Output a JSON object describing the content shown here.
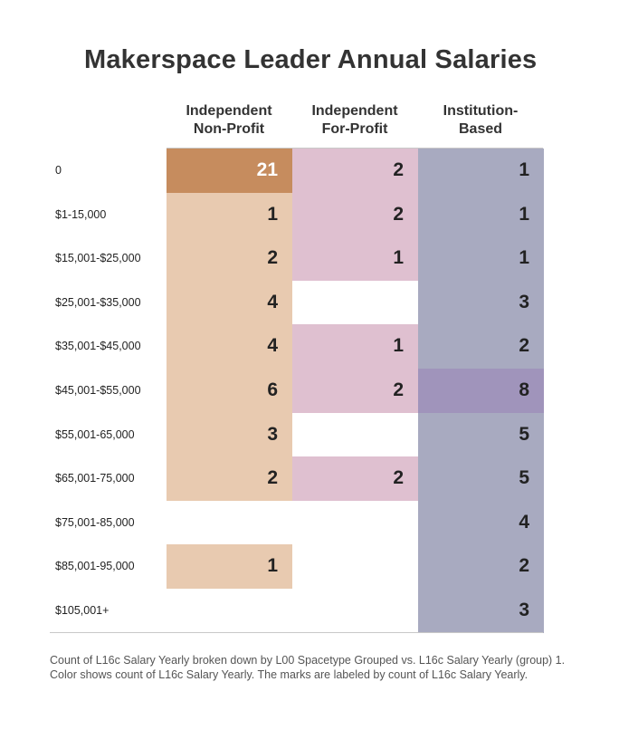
{
  "title": "Makerspace Leader Annual Salaries",
  "chart_data": {
    "type": "table",
    "title": "Makerspace Leader Annual Salaries",
    "columns": [
      {
        "lines": [
          "Independent",
          "Non-Profit"
        ]
      },
      {
        "lines": [
          "Independent",
          "For-Profit"
        ]
      },
      {
        "lines": [
          "Institution-",
          "Based"
        ]
      }
    ],
    "rows": [
      "0",
      "$1-15,000",
      "$15,001-$25,000",
      "$25,001-$35,000",
      "$35,001-$45,000",
      "$45,001-$55,000",
      "$55,001-65,000",
      "$65,001-75,000",
      "$75,001-85,000",
      "$85,001-95,000",
      "$105,001+"
    ],
    "values": [
      [
        21,
        2,
        1
      ],
      [
        1,
        2,
        1
      ],
      [
        2,
        1,
        1
      ],
      [
        4,
        null,
        3
      ],
      [
        4,
        1,
        2
      ],
      [
        6,
        2,
        8
      ],
      [
        3,
        null,
        5
      ],
      [
        2,
        2,
        5
      ],
      [
        null,
        null,
        4
      ],
      [
        1,
        null,
        2
      ],
      [
        null,
        null,
        3
      ]
    ],
    "colors": {
      "column_base": [
        "#e8cab0",
        "#dfc0d0",
        "#a8aac0"
      ],
      "column_high": [
        "#c68c5e",
        "#dfc0d0",
        "#a094bb"
      ],
      "light_text": "#ffffff",
      "dark_text": "#222222"
    }
  },
  "footnote": {
    "line1": "Count of L16c Salary Yearly broken down by L00 Spacetype Grouped vs. L16c Salary Yearly (group) 1.",
    "line2": "Color shows count of L16c Salary Yearly.  The marks are labeled by count of L16c Salary Yearly."
  }
}
